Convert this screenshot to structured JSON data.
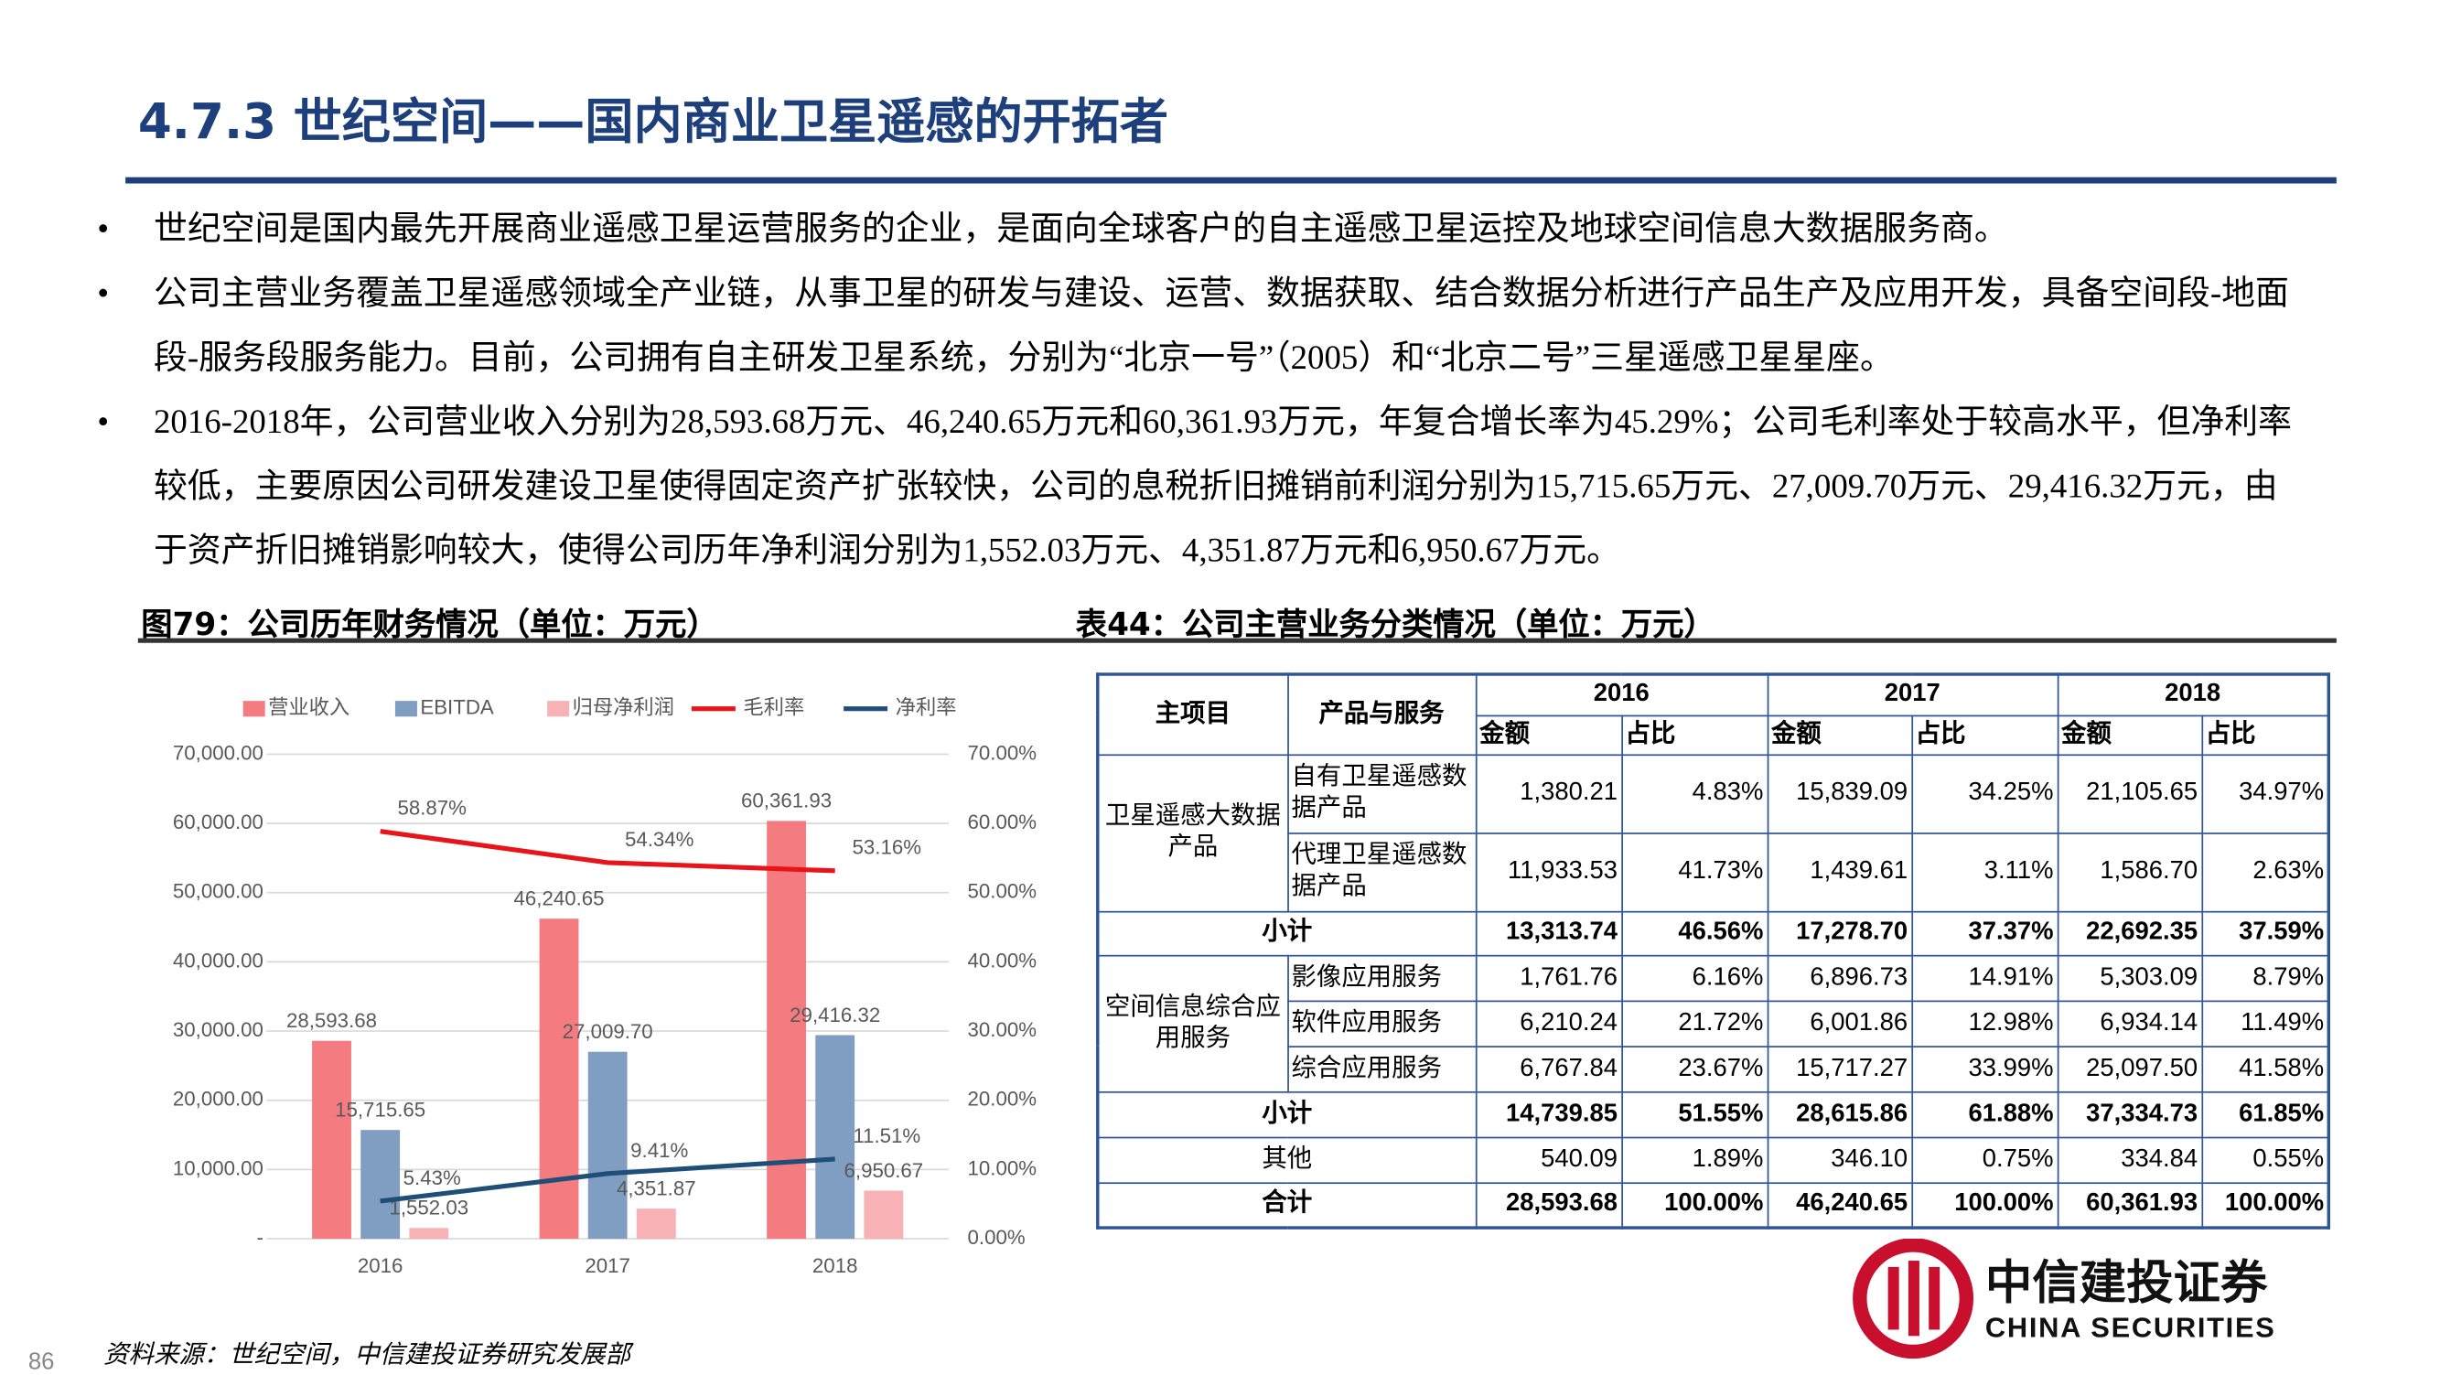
{
  "header": {
    "title": "4.7.3 世纪空间——国内商业卫星遥感的开拓者"
  },
  "bullets": [
    "世纪空间是国内最先开展商业遥感卫星运营服务的企业，是面向全球客户的自主遥感卫星运控及地球空间信息大数据服务商。",
    "公司主营业务覆盖卫星遥感领域全产业链，从事卫星的研发与建设、运营、数据获取、结合数据分析进行产品生产及应用开发，具备空间段-地面段-服务段服务能力。目前，公司拥有自主研发卫星系统，分别为“北京一号”（2005）和“北京二号”三星遥感卫星星座。",
    "2016-2018年，公司营业收入分别为28,593.68万元、46,240.65万元和60,361.93万元，年复合增长率为45.29%；公司毛利率处于较高水平，但净利率较低，主要原因公司研发建设卫星使得固定资产扩张较快，公司的息税折旧摊销前利润分别为15,715.65万元、27,009.70万元、29,416.32万元，由于资产折旧摊销影响较大，使得公司历年净利润分别为1,552.03万元、4,351.87万元和6,950.67万元。"
  ],
  "figure_caption": "图79：公司历年财务情况（单位：万元）",
  "table_caption": "表44：公司主营业务分类情况（单位：万元）",
  "chart_data": {
    "type": "bar",
    "categories": [
      "2016",
      "2017",
      "2018"
    ],
    "series": [
      {
        "name": "营业收入",
        "type": "bar",
        "color": "#f47c80",
        "values": [
          28593.68,
          46240.65,
          60361.93
        ],
        "value_labels": [
          "28,593.68",
          "46,240.65",
          "60,361.93"
        ]
      },
      {
        "name": "EBITDA",
        "type": "bar",
        "color": "#7f9ec2",
        "values": [
          15715.65,
          27009.7,
          29416.32
        ],
        "value_labels": [
          "15,715.65",
          "27,009.70",
          "29,416.32"
        ]
      },
      {
        "name": "归母净利润",
        "type": "bar",
        "color": "#f8b2b6",
        "values": [
          1552.03,
          4351.87,
          6950.67
        ],
        "value_labels": [
          "1,552.03",
          "4,351.87",
          "6,950.67"
        ]
      },
      {
        "name": "毛利率",
        "type": "line",
        "axis": "y2",
        "color": "#e8141a",
        "values": [
          58.87,
          54.34,
          53.16
        ],
        "value_labels": [
          "58.87%",
          "54.34%",
          "53.16%"
        ]
      },
      {
        "name": "净利率",
        "type": "line",
        "axis": "y2",
        "color": "#1f4e79",
        "values": [
          5.43,
          9.41,
          11.51
        ],
        "value_labels": [
          "5.43%",
          "9.41%",
          "11.51%"
        ]
      }
    ],
    "ylim": [
      0,
      70000
    ],
    "yticks": [
      {
        "value": 0,
        "label": "-"
      },
      {
        "value": 10000,
        "label": "10,000.00"
      },
      {
        "value": 20000,
        "label": "20,000.00"
      },
      {
        "value": 30000,
        "label": "30,000.00"
      },
      {
        "value": 40000,
        "label": "40,000.00"
      },
      {
        "value": 50000,
        "label": "50,000.00"
      },
      {
        "value": 60000,
        "label": "60,000.00"
      },
      {
        "value": 70000,
        "label": "70,000.00"
      }
    ],
    "y2lim": [
      0,
      70
    ],
    "y2ticks": [
      {
        "value": 0,
        "label": "0.00%"
      },
      {
        "value": 10,
        "label": "10.00%"
      },
      {
        "value": 20,
        "label": "20.00%"
      },
      {
        "value": 30,
        "label": "30.00%"
      },
      {
        "value": 40,
        "label": "40.00%"
      },
      {
        "value": 50,
        "label": "50.00%"
      },
      {
        "value": 60,
        "label": "60.00%"
      },
      {
        "value": 70,
        "label": "70.00%"
      }
    ],
    "grid": true,
    "legend": "top"
  },
  "table": {
    "main_header": "主项目",
    "product_header": "产品与服务",
    "years": [
      "2016",
      "2017",
      "2018"
    ],
    "subheaders": [
      "金额",
      "占比",
      "金额",
      "占比",
      "金额",
      "占比"
    ],
    "rows": [
      {
        "main": "卫星遥感大数据产品",
        "product": "自有卫星遥感数据产品",
        "cells": [
          "1,380.21",
          "4.83%",
          "15,839.09",
          "34.25%",
          "21,105.65",
          "34.97%"
        ]
      },
      {
        "product": "代理卫星遥感数据产品",
        "cells": [
          "11,933.53",
          "41.73%",
          "1,439.61",
          "3.11%",
          "1,586.70",
          "2.63%"
        ]
      },
      {
        "label": "小计",
        "cells": [
          "13,313.74",
          "46.56%",
          "17,278.70",
          "37.37%",
          "22,692.35",
          "37.59%"
        ]
      },
      {
        "main": "空间信息综合应用服务",
        "product": "影像应用服务",
        "cells": [
          "1,761.76",
          "6.16%",
          "6,896.73",
          "14.91%",
          "5,303.09",
          "8.79%"
        ]
      },
      {
        "product": "软件应用服务",
        "cells": [
          "6,210.24",
          "21.72%",
          "6,001.86",
          "12.98%",
          "6,934.14",
          "11.49%"
        ]
      },
      {
        "product": "综合应用服务",
        "cells": [
          "6,767.84",
          "23.67%",
          "15,717.27",
          "33.99%",
          "25,097.50",
          "41.58%"
        ]
      },
      {
        "label": "小计",
        "cells": [
          "14,739.85",
          "51.55%",
          "28,615.86",
          "61.88%",
          "37,334.73",
          "61.85%"
        ]
      },
      {
        "label": "其他",
        "cells": [
          "540.09",
          "1.89%",
          "346.10",
          "0.75%",
          "334.84",
          "0.55%"
        ]
      },
      {
        "label": "合计",
        "cells": [
          "28,593.68",
          "100.00%",
          "46,240.65",
          "100.00%",
          "60,361.93",
          "100.00%"
        ]
      }
    ]
  },
  "source": "资料来源：世纪空间，中信建投证券研究发展部",
  "page_number": "86",
  "logo": {
    "name": "中信建投证券",
    "english": "CHINA SECURITIES"
  }
}
